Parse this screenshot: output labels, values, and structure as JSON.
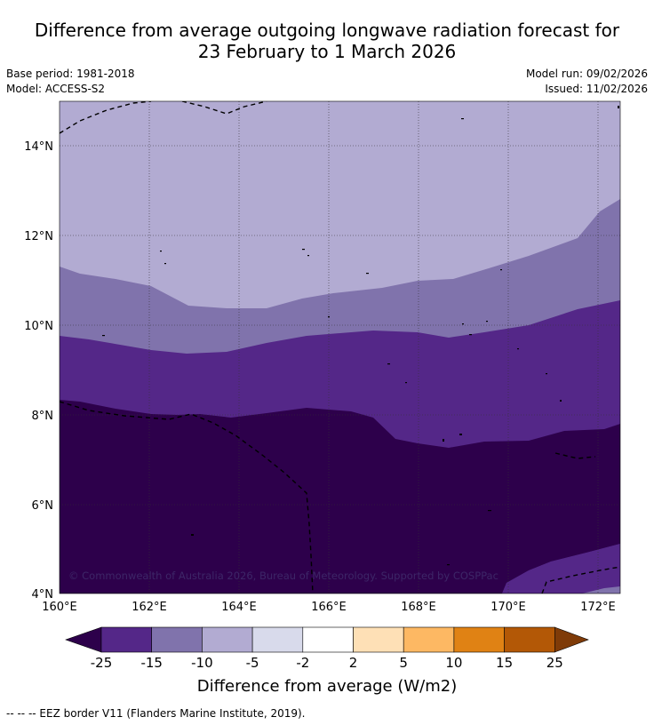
{
  "title": {
    "line1": "Difference from average outgoing longwave radiation forecast for",
    "line2": "23 February to 1 March 2026"
  },
  "meta": {
    "base_period": "Base period: 1981-2018",
    "model": "Model: ACCESS-S2",
    "model_run": "Model run: 09/02/2026",
    "issued": "Issued: 11/02/2026"
  },
  "map": {
    "lat_labels": [
      "14°N",
      "12°N",
      "10°N",
      "8°N",
      "6°N",
      "4°N"
    ],
    "lon_labels": [
      "160°E",
      "162°E",
      "164°E",
      "166°E",
      "168°E",
      "170°E",
      "172°E"
    ],
    "copyright": "© Commonwealth of Australia 2026, Bureau of Meteorology. Supported by COSPPac",
    "band_colors": {
      "lt_minus25": "#2d004b",
      "minus25_minus15": "#542788",
      "minus15_minus10": "#8073ac",
      "minus10_minus5": "#b2abd2"
    }
  },
  "colorbar": {
    "ticks": [
      "-25",
      "-15",
      "-10",
      "-5",
      "-2",
      "2",
      "5",
      "10",
      "15",
      "25"
    ],
    "colors": [
      "#2d004b",
      "#542788",
      "#8073ac",
      "#b2abd2",
      "#d8daeb",
      "#ffffff",
      "#fee0b6",
      "#fdb863",
      "#e08214",
      "#b35806",
      "#7f3b08"
    ],
    "label": "Difference from average (W/m2)"
  },
  "footnote": "--  --  -- EEZ border V11 (Flanders Marine Institute, 2019)."
}
